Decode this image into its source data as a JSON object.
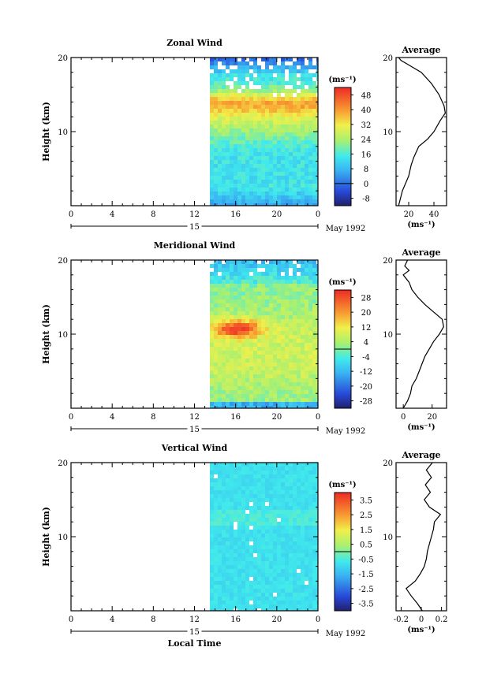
{
  "chart_data": [
    {
      "type": "heatmap",
      "title": "Zonal Wind",
      "ylabel": "Height (km)",
      "ylim": [
        0,
        20
      ],
      "yticks": [
        "10",
        "20"
      ],
      "xticks": [
        "0",
        "4",
        "8",
        "12",
        "16",
        "20",
        "0"
      ],
      "date_label": "15",
      "month_label": "May 1992",
      "data_start_hour": 13.5,
      "colorbar": {
        "unit": "(ms⁻¹)",
        "ticks": [
          "48",
          "40",
          "32",
          "24",
          "16",
          "8",
          "0",
          "-8"
        ],
        "min": -12,
        "max": 52
      },
      "profile": {
        "title": "Average",
        "xticks": [
          "20",
          "40"
        ],
        "xlim": [
          10,
          50
        ],
        "xunit": "(ms⁻¹)",
        "points": [
          [
            12,
            0
          ],
          [
            15,
            2
          ],
          [
            20,
            4
          ],
          [
            22,
            5.5
          ],
          [
            24,
            6.5
          ],
          [
            28,
            8
          ],
          [
            35,
            9
          ],
          [
            40,
            10
          ],
          [
            45,
            11.5
          ],
          [
            49,
            12.5
          ],
          [
            48,
            13.5
          ],
          [
            44,
            15
          ],
          [
            38,
            16.5
          ],
          [
            30,
            18
          ],
          [
            20,
            19
          ],
          [
            14,
            19.6
          ],
          [
            12,
            20
          ]
        ]
      }
    },
    {
      "type": "heatmap",
      "title": "Meridional Wind",
      "ylabel": "Height (km)",
      "ylim": [
        0,
        20
      ],
      "yticks": [
        "10",
        "20"
      ],
      "xticks": [
        "0",
        "4",
        "8",
        "12",
        "16",
        "20",
        "0"
      ],
      "date_label": "15",
      "month_label": "May 1992",
      "data_start_hour": 13.5,
      "colorbar": {
        "unit": "(ms⁻¹)",
        "ticks": [
          "28",
          "20",
          "12",
          "4",
          "-4",
          "-12",
          "-20",
          "-28"
        ],
        "min": -32,
        "max": 32
      },
      "profile": {
        "title": "Average",
        "xticks": [
          "0",
          "20"
        ],
        "xlim": [
          -5,
          30
        ],
        "xunit": "(ms⁻¹)",
        "points": [
          [
            0,
            0
          ],
          [
            3,
            1
          ],
          [
            5,
            2
          ],
          [
            6,
            3
          ],
          [
            9,
            4
          ],
          [
            11,
            5
          ],
          [
            13,
            6
          ],
          [
            15,
            7
          ],
          [
            18,
            8
          ],
          [
            21,
            9
          ],
          [
            25,
            10
          ],
          [
            28,
            11
          ],
          [
            27,
            12
          ],
          [
            21,
            13
          ],
          [
            15,
            14
          ],
          [
            10,
            15
          ],
          [
            6,
            16
          ],
          [
            4,
            17
          ],
          [
            0,
            18
          ],
          [
            4,
            18.6
          ],
          [
            1,
            19.2
          ],
          [
            3,
            20
          ]
        ]
      }
    },
    {
      "type": "heatmap",
      "title": "Vertical Wind",
      "ylabel": "Height (km)",
      "ylim": [
        0,
        20
      ],
      "yticks": [
        "10",
        "20"
      ],
      "xticks": [
        "0",
        "4",
        "8",
        "12",
        "16",
        "20",
        "0"
      ],
      "xlabel": "Local Time",
      "date_label": "15",
      "month_label": "May 1992",
      "data_start_hour": 13.5,
      "colorbar": {
        "unit": "(ms⁻¹)",
        "ticks": [
          "3.5",
          "2.5",
          "1.5",
          "0.5",
          "-0.5",
          "-1.5",
          "-2.5",
          "-3.5"
        ],
        "min": -4,
        "max": 4
      },
      "profile": {
        "title": "Average",
        "xticks": [
          "-0.2",
          "0",
          "0.2"
        ],
        "xlim": [
          -0.25,
          0.25
        ],
        "xunit": "(ms⁻¹)",
        "points": [
          [
            0.01,
            0
          ],
          [
            -0.04,
            1
          ],
          [
            -0.1,
            2
          ],
          [
            -0.15,
            3
          ],
          [
            -0.06,
            4
          ],
          [
            -0.01,
            5
          ],
          [
            0.03,
            6
          ],
          [
            0.05,
            7
          ],
          [
            0.06,
            8
          ],
          [
            0.08,
            9
          ],
          [
            0.1,
            10
          ],
          [
            0.12,
            11
          ],
          [
            0.13,
            12
          ],
          [
            0.19,
            13
          ],
          [
            0.08,
            14
          ],
          [
            0.03,
            15
          ],
          [
            0.09,
            16
          ],
          [
            0.04,
            17
          ],
          [
            0.1,
            18
          ],
          [
            0.05,
            19
          ],
          [
            0.11,
            20
          ]
        ]
      }
    }
  ]
}
